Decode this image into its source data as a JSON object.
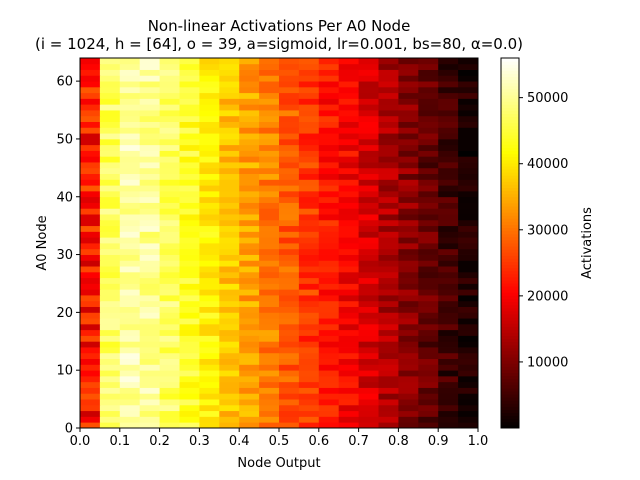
{
  "chart_data": {
    "type": "heatmap",
    "title": "Non-linear Activations Per A0 Node",
    "subtitle": "(i = 1024, h = [64], o = 39, a=sigmoid, lr=0.001, bs=80, α=0.0)",
    "xlabel": "Node Output",
    "ylabel": "A0 Node",
    "colorbar_label": "Activations",
    "colormap": "hot",
    "xlim": [
      0.0,
      1.0
    ],
    "ylim": [
      0,
      64
    ],
    "x_ticks": [
      "0.0",
      "0.1",
      "0.2",
      "0.3",
      "0.4",
      "0.5",
      "0.6",
      "0.7",
      "0.8",
      "0.9",
      "1.0"
    ],
    "y_ticks": [
      "0",
      "10",
      "20",
      "30",
      "40",
      "50",
      "60"
    ],
    "colorbar_ticks": [
      "10000",
      "20000",
      "30000",
      "40000",
      "50000"
    ],
    "color_range": [
      0,
      56000
    ],
    "x_bins": [
      0.0,
      0.05,
      0.1,
      0.15,
      0.2,
      0.25,
      0.3,
      0.35,
      0.4,
      0.45,
      0.5,
      0.55,
      0.6,
      0.65,
      0.7,
      0.75,
      0.8,
      0.85,
      0.9,
      0.95,
      1.0
    ],
    "y_bins": 64,
    "bin_mean_activations": [
      22000,
      47000,
      51000,
      50000,
      47000,
      44000,
      41000,
      37000,
      34000,
      31000,
      28000,
      25000,
      22000,
      20000,
      17000,
      14000,
      11000,
      8000,
      5000,
      2000
    ],
    "row_variation": 3500,
    "first_column_variation": 6000
  }
}
